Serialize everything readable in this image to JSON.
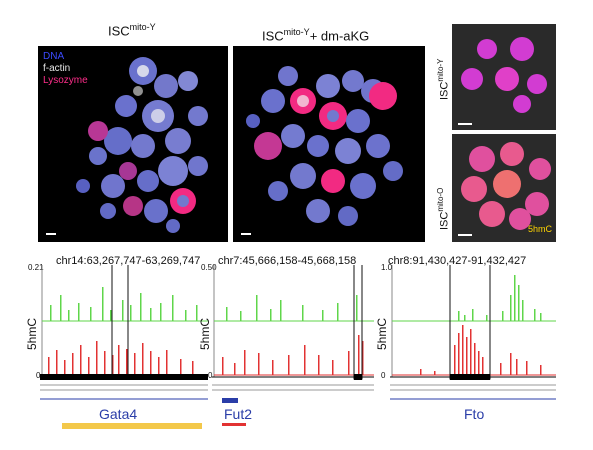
{
  "panels": {
    "left_title": {
      "base": "ISC",
      "sup": "mito-Y",
      "suffix": ""
    },
    "middle_title": {
      "base": "ISC",
      "sup": "mito-Y",
      "suffix": "+ dm-aKG"
    },
    "right_top_label": {
      "base": "ISC",
      "sup": "mito-Y"
    },
    "right_bottom_label": {
      "base": "ISC",
      "sup": "mito-O"
    }
  },
  "legend": {
    "dna": "DNA",
    "factin": "f-actin",
    "lysozyme": "Lysozyme",
    "colors": {
      "dna": "#3b4bff",
      "factin": "#e6e6e6",
      "lysozyme": "#ff2d8a"
    }
  },
  "stain_label": "5hmC",
  "tracks": [
    {
      "coords": "chr14:63,267,747-63,269,747",
      "ymax": "0.21",
      "ymin": "0",
      "gene": "Gata4"
    },
    {
      "coords": "chr7:45,666,158-45,668,158",
      "ymax": "0.50",
      "ymin": "0",
      "gene": "Fut2"
    },
    {
      "coords": "chr8:91,430,427-91,432,427",
      "ymax": "1.0",
      "ymin": "0",
      "gene": "Fto"
    }
  ],
  "track_ylabel": "5hmC",
  "colors": {
    "green": "#5fd64a",
    "red": "#e23232",
    "gene": "#2a3da8"
  }
}
